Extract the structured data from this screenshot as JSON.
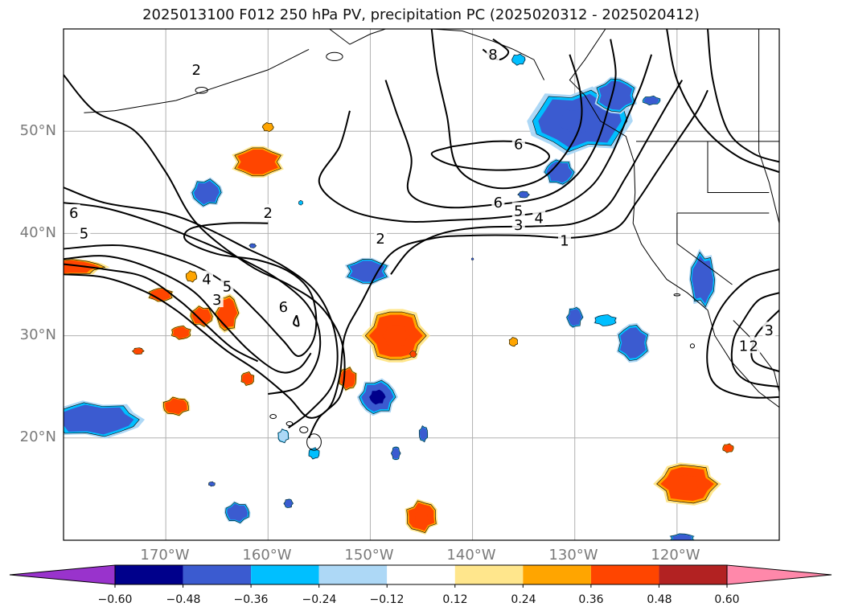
{
  "title": "2025013100 F012 250 hPa PV, precipitation PC (2025020312 - 2025020412)",
  "map": {
    "projection": "PlateCarree",
    "lon_range": [
      -180,
      -110
    ],
    "lat_range": [
      10,
      60
    ],
    "lat_ticks": [
      "20°N",
      "30°N",
      "40°N",
      "50°N"
    ],
    "lon_ticks": [
      "170°W",
      "160°W",
      "150°W",
      "140°W",
      "130°W",
      "120°W"
    ],
    "coastline_color": "#000000",
    "grid_color": "#b0b0b0"
  },
  "pv_contour_labels": [
    "1",
    "2",
    "3",
    "4",
    "5",
    "6",
    "8"
  ],
  "pv_contour_label_instances": [
    {
      "text": "2",
      "lon": -167,
      "lat": 56
    },
    {
      "text": "2",
      "lon": -160,
      "lat": 42
    },
    {
      "text": "2",
      "lon": -149,
      "lat": 39.5
    },
    {
      "text": "1",
      "lon": -131,
      "lat": 39.3
    },
    {
      "text": "3",
      "lon": -135.5,
      "lat": 40.8
    },
    {
      "text": "4",
      "lon": -133.5,
      "lat": 41.5
    },
    {
      "text": "5",
      "lon": -135.5,
      "lat": 42.2
    },
    {
      "text": "6",
      "lon": -137.5,
      "lat": 43
    },
    {
      "text": "6",
      "lon": -135.5,
      "lat": 48.7
    },
    {
      "text": "6",
      "lon": -158.5,
      "lat": 32.8
    },
    {
      "text": "6",
      "lon": -179,
      "lat": 42
    },
    {
      "text": "5",
      "lon": -178,
      "lat": 40
    },
    {
      "text": "4",
      "lon": -166,
      "lat": 35.5
    },
    {
      "text": "5",
      "lon": -164,
      "lat": 34.8
    },
    {
      "text": "3",
      "lon": -165,
      "lat": 33.5
    },
    {
      "text": "8",
      "lon": -138,
      "lat": 57.5
    },
    {
      "text": "1",
      "lon": -113.5,
      "lat": 29
    },
    {
      "text": "2",
      "lon": -112.5,
      "lat": 29
    },
    {
      "text": "3",
      "lon": -111,
      "lat": 30.5
    }
  ],
  "precip_blobs": [
    {
      "lon": -161,
      "lat": 47,
      "rx": 2.2,
      "ry": 1.3,
      "value": 0.4
    },
    {
      "lon": -160,
      "lat": 50.4,
      "rx": 0.5,
      "ry": 0.4,
      "value": 0.3
    },
    {
      "lon": -180,
      "lat": 36.7,
      "rx": 3.6,
      "ry": 0.7,
      "value": 0.36
    },
    {
      "lon": -170.5,
      "lat": 34,
      "rx": 1.1,
      "ry": 0.6,
      "value": 0.4
    },
    {
      "lon": -166.5,
      "lat": 31.9,
      "rx": 1.0,
      "ry": 0.9,
      "value": 0.4
    },
    {
      "lon": -164,
      "lat": 32.2,
      "rx": 1.0,
      "ry": 1.6,
      "value": 0.4
    },
    {
      "lon": -168.5,
      "lat": 30.3,
      "rx": 0.9,
      "ry": 0.6,
      "value": 0.4
    },
    {
      "lon": -167.5,
      "lat": 35.8,
      "rx": 0.5,
      "ry": 0.5,
      "value": 0.3
    },
    {
      "lon": -172.7,
      "lat": 28.5,
      "rx": 0.5,
      "ry": 0.3,
      "value": 0.36
    },
    {
      "lon": -162,
      "lat": 25.8,
      "rx": 0.6,
      "ry": 0.6,
      "value": 0.4
    },
    {
      "lon": -169,
      "lat": 23.1,
      "rx": 1.2,
      "ry": 0.8,
      "value": 0.4
    },
    {
      "lon": -147.5,
      "lat": 30,
      "rx": 2.6,
      "ry": 2.3,
      "value": 0.46
    },
    {
      "lon": -152.2,
      "lat": 25.8,
      "rx": 0.8,
      "ry": 1.0,
      "value": 0.4
    },
    {
      "lon": -145,
      "lat": 12.3,
      "rx": 1.4,
      "ry": 1.4,
      "value": 0.46
    },
    {
      "lon": -119,
      "lat": 15.5,
      "rx": 2.6,
      "ry": 1.8,
      "value": 0.46
    },
    {
      "lon": -115,
      "lat": 19,
      "rx": 0.5,
      "ry": 0.4,
      "value": 0.36
    },
    {
      "lon": -136,
      "lat": 29.4,
      "rx": 0.4,
      "ry": 0.4,
      "value": 0.3
    },
    {
      "lon": -145.8,
      "lat": 28.2,
      "rx": 0.3,
      "ry": 0.3,
      "value": 0.36
    },
    {
      "lon": -129.5,
      "lat": 51,
      "rx": 4.3,
      "ry": 2.7,
      "value": -0.46
    },
    {
      "lon": -126,
      "lat": 53.5,
      "rx": 1.8,
      "ry": 1.5,
      "value": -0.4
    },
    {
      "lon": -131.5,
      "lat": 46,
      "rx": 1.3,
      "ry": 1.1,
      "value": -0.4
    },
    {
      "lon": -166,
      "lat": 44,
      "rx": 1.3,
      "ry": 1.2,
      "value": -0.4
    },
    {
      "lon": -150.3,
      "lat": 36.3,
      "rx": 1.9,
      "ry": 1.1,
      "value": -0.4
    },
    {
      "lon": -177,
      "lat": 21.8,
      "rx": 4.0,
      "ry": 1.5,
      "value": -0.4
    },
    {
      "lon": -149.3,
      "lat": 24,
      "rx": 1.6,
      "ry": 1.5,
      "value": -0.52
    },
    {
      "lon": -124.3,
      "lat": 29.3,
      "rx": 1.4,
      "ry": 1.6,
      "value": -0.4
    },
    {
      "lon": -117.5,
      "lat": 35.5,
      "rx": 1.1,
      "ry": 2.4,
      "value": -0.4
    },
    {
      "lon": -130,
      "lat": 31.8,
      "rx": 0.7,
      "ry": 0.9,
      "value": -0.4
    },
    {
      "lon": -127,
      "lat": 31.5,
      "rx": 1.0,
      "ry": 0.5,
      "value": -0.3
    },
    {
      "lon": -163,
      "lat": 12.7,
      "rx": 1.1,
      "ry": 0.9,
      "value": -0.4
    },
    {
      "lon": -158,
      "lat": 13.6,
      "rx": 0.4,
      "ry": 0.4,
      "value": -0.4
    },
    {
      "lon": -165.5,
      "lat": 15.5,
      "rx": 0.3,
      "ry": 0.2,
      "value": -0.4
    },
    {
      "lon": -144.8,
      "lat": 20.4,
      "rx": 0.4,
      "ry": 0.7,
      "value": -0.4
    },
    {
      "lon": -147.5,
      "lat": 18.5,
      "rx": 0.4,
      "ry": 0.6,
      "value": -0.4
    },
    {
      "lon": -155.5,
      "lat": 18.5,
      "rx": 0.5,
      "ry": 0.5,
      "value": -0.3
    },
    {
      "lon": -158.5,
      "lat": 20.2,
      "rx": 0.5,
      "ry": 0.6,
      "value": -0.2
    },
    {
      "lon": -135,
      "lat": 43.8,
      "rx": 0.5,
      "ry": 0.3,
      "value": -0.4
    },
    {
      "lon": -122.5,
      "lat": 53,
      "rx": 0.8,
      "ry": 0.4,
      "value": -0.4
    },
    {
      "lon": -156.8,
      "lat": 43,
      "rx": 0.2,
      "ry": 0.2,
      "value": -0.3
    },
    {
      "lon": -161.5,
      "lat": 38.8,
      "rx": 0.3,
      "ry": 0.2,
      "value": -0.4
    },
    {
      "lon": -135.5,
      "lat": 57,
      "rx": 0.6,
      "ry": 0.5,
      "value": -0.3
    },
    {
      "lon": -119.5,
      "lat": 10.2,
      "rx": 1.1,
      "ry": 0.4,
      "value": -0.4
    },
    {
      "lon": -140,
      "lat": 37.5,
      "rx": 0.1,
      "ry": 0.1,
      "value": -0.4
    }
  ],
  "colorbar": {
    "boundaries": [
      -0.72,
      -0.6,
      -0.48,
      -0.36,
      -0.24,
      -0.12,
      0.12,
      0.24,
      0.36,
      0.48,
      0.6,
      0.72
    ],
    "colors": [
      "#9933cc",
      "#00008b",
      "#3b5bd0",
      "#00bfff",
      "#add8f6",
      "#ffffff",
      "#ffe68c",
      "#ffa500",
      "#ff4500",
      "#b22222",
      "#ff88aa"
    ],
    "extend_low_color": "#9933cc",
    "extend_high_color": "#ff88aa",
    "tick_labels": [
      "−0.60",
      "−0.48",
      "−0.36",
      "−0.24",
      "−0.12",
      "0.12",
      "0.24",
      "0.36",
      "0.48",
      "0.60"
    ]
  }
}
